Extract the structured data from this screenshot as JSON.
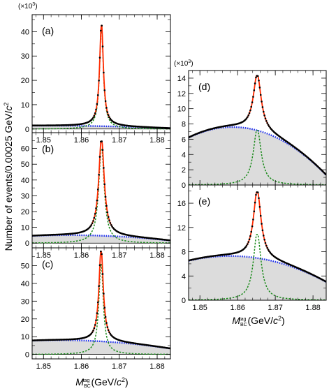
{
  "figure": {
    "ylabel_prefix": "Number of events/0.00025 GeV/",
    "ylabel_unit": "c",
    "ylabel_unit_power": "2",
    "multiplier_prefix": "(×10",
    "multiplier_power": "3",
    "multiplier_suffix": ")",
    "xlabel_symbol": "M",
    "xlabel_sub": "BC",
    "xlabel_sup": "tag",
    "xlabel_unit_open": "(GeV/",
    "xlabel_unit_c": "c",
    "xlabel_unit_power": "2",
    "xlabel_unit_close": ")"
  },
  "colors": {
    "data_points": "#000000",
    "total_fit": "#ff2a00",
    "signal": "#1a8a1a",
    "background": "#2233ee",
    "background_fill": "#dcdcdc"
  },
  "chart_data": [
    {
      "type": "line",
      "label": "(a)",
      "xlim": [
        1.847,
        1.8835
      ],
      "ylim": [
        -1.5,
        47
      ],
      "yticks": [
        0,
        10,
        20,
        30,
        40
      ],
      "xticks": [
        1.85,
        1.86,
        1.87,
        1.88
      ],
      "xticklabels": [
        "1.85",
        "1.86",
        "1.87",
        "1.88"
      ],
      "peak_x": 1.8653,
      "peak_y": 42.5,
      "bkg_left": 1.4,
      "bkg_right": 0.3,
      "bkg_curv": 0.3,
      "signal_width": 0.00058,
      "tail_fraction": 0.035,
      "tail_width": 0.0033
    },
    {
      "type": "line",
      "label": "(b)",
      "xlim": [
        1.847,
        1.8835
      ],
      "ylim": [
        -3,
        70
      ],
      "yticks": [
        0,
        10,
        20,
        30,
        40,
        50,
        60
      ],
      "xticks": [
        1.85,
        1.86,
        1.87,
        1.88
      ],
      "xticklabels": [
        "1.85",
        "1.86",
        "1.87",
        "1.88"
      ],
      "peak_x": 1.8653,
      "peak_y": 64.5,
      "bkg_left": 4.6,
      "bkg_right": 1.6,
      "bkg_curv": 1.6,
      "signal_width": 0.00085,
      "tail_fraction": 0.04,
      "tail_width": 0.0035
    },
    {
      "type": "line",
      "label": "(c)",
      "xlim": [
        1.847,
        1.8835
      ],
      "ylim": [
        -2.5,
        60
      ],
      "yticks": [
        0,
        10,
        20,
        30,
        40,
        50
      ],
      "xticks": [
        1.85,
        1.86,
        1.87,
        1.88
      ],
      "xticklabels": [
        "1.85",
        "1.86",
        "1.87",
        "1.88"
      ],
      "peak_x": 1.8652,
      "peak_y": 58,
      "bkg_left": 7.8,
      "bkg_right": 3.3,
      "bkg_curv": 1.8,
      "signal_width": 0.00068,
      "tail_fraction": 0.035,
      "tail_width": 0.0033
    },
    {
      "type": "line",
      "label": "(d)",
      "xlim": [
        1.847,
        1.8835
      ],
      "ylim": [
        0,
        15
      ],
      "yticks": [
        0,
        2,
        4,
        6,
        8,
        10,
        12,
        14
      ],
      "xticks": [
        1.85,
        1.86,
        1.87,
        1.88
      ],
      "xticklabels": [],
      "peak_x": 1.8652,
      "peak_y": 14.3,
      "bkg_left": 6.2,
      "bkg_right": 1.3,
      "bkg_curv": 3.4,
      "signal_width": 0.00125,
      "tail_fraction": 0.03,
      "tail_width": 0.004
    },
    {
      "type": "line",
      "label": "(e)",
      "xlim": [
        1.847,
        1.8835
      ],
      "ylim": [
        0,
        19
      ],
      "yticks": [
        0,
        4,
        8,
        12,
        16
      ],
      "xticks": [
        1.85,
        1.86,
        1.87,
        1.88
      ],
      "xticklabels": [
        "1.85",
        "1.86",
        "1.87",
        "1.88"
      ],
      "peak_x": 1.8652,
      "peak_y": 17.8,
      "bkg_left": 6.5,
      "bkg_right": 3.0,
      "bkg_curv": 2.2,
      "signal_width": 0.0012,
      "tail_fraction": 0.03,
      "tail_width": 0.004
    }
  ]
}
